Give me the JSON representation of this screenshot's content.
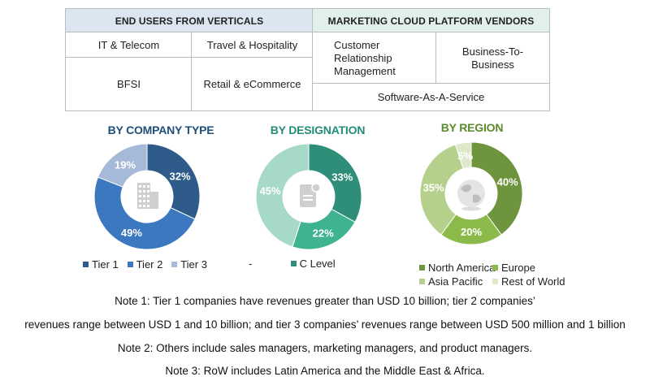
{
  "table": {
    "left_header": "END USERS FROM VERTICALS",
    "right_header": "MARKETING CLOUD PLATFORM VENDORS",
    "verticals": [
      "IT & Telecom",
      "Travel & Hospitality",
      "BFSI",
      "Retail & eCommerce"
    ],
    "vendors": [
      "Customer\nRelationship\nManagement",
      "Business-To-\nBusiness",
      "Software-As-A-Service"
    ],
    "colors": {
      "left_header_bg": "#dce6f1",
      "right_header_bg": "#e2f0ea"
    }
  },
  "chart_data": [
    {
      "type": "pie",
      "title": "BY COMPANY TYPE",
      "title_color": "#1f4e79",
      "labels": [
        "Tier 1",
        "Tier 2",
        "Tier 3"
      ],
      "values": [
        32,
        49,
        19
      ],
      "value_labels": [
        "32%",
        "49%",
        "19%"
      ],
      "colors": [
        "#2e5b8a",
        "#3b78c0",
        "#a7b9d9"
      ],
      "center_icon": "building-icon",
      "legend": [
        "Tier 1",
        "Tier 2",
        "Tier 3"
      ],
      "legend_position": "bottom"
    },
    {
      "type": "pie",
      "title": "BY DESIGNATION",
      "title_color": "#238c74",
      "labels": [
        "",
        "C Level",
        ""
      ],
      "values": [
        33,
        22,
        45
      ],
      "value_labels": [
        "33%",
        "22%",
        "45%"
      ],
      "colors": [
        "#2e8e7a",
        "#3fb38f",
        "#a7d9c8"
      ],
      "center_icon": "document-icon",
      "legend": [
        "-",
        "C Level"
      ],
      "legend_position": "bottom"
    },
    {
      "type": "pie",
      "title": "BY REGION",
      "title_color": "#5b8a2a",
      "labels": [
        "North America",
        "Europe",
        "Asia Pacific",
        "Rest of World"
      ],
      "values": [
        40,
        20,
        35,
        5
      ],
      "value_labels": [
        "40%",
        "20%",
        "35%",
        "5%"
      ],
      "colors": [
        "#6e953d",
        "#8cba4a",
        "#b5d08c",
        "#dde9c9"
      ],
      "center_icon": "globe-icon",
      "legend": [
        "North America",
        "Europe",
        "Asia Pacific",
        "Rest of World"
      ],
      "legend_position": "bottom"
    }
  ],
  "notes": [
    "Note 1: Tier 1 companies have revenues greater than USD 10 billion; tier 2 companies’",
    "revenues range between USD 1 and 10 billion; and tier 3 companies’ revenues range between USD 500 million and 1 billion",
    "Note 2: Others include sales managers, marketing managers, and product managers.",
    "Note 3: RoW includes Latin America and the Middle East & Africa."
  ]
}
